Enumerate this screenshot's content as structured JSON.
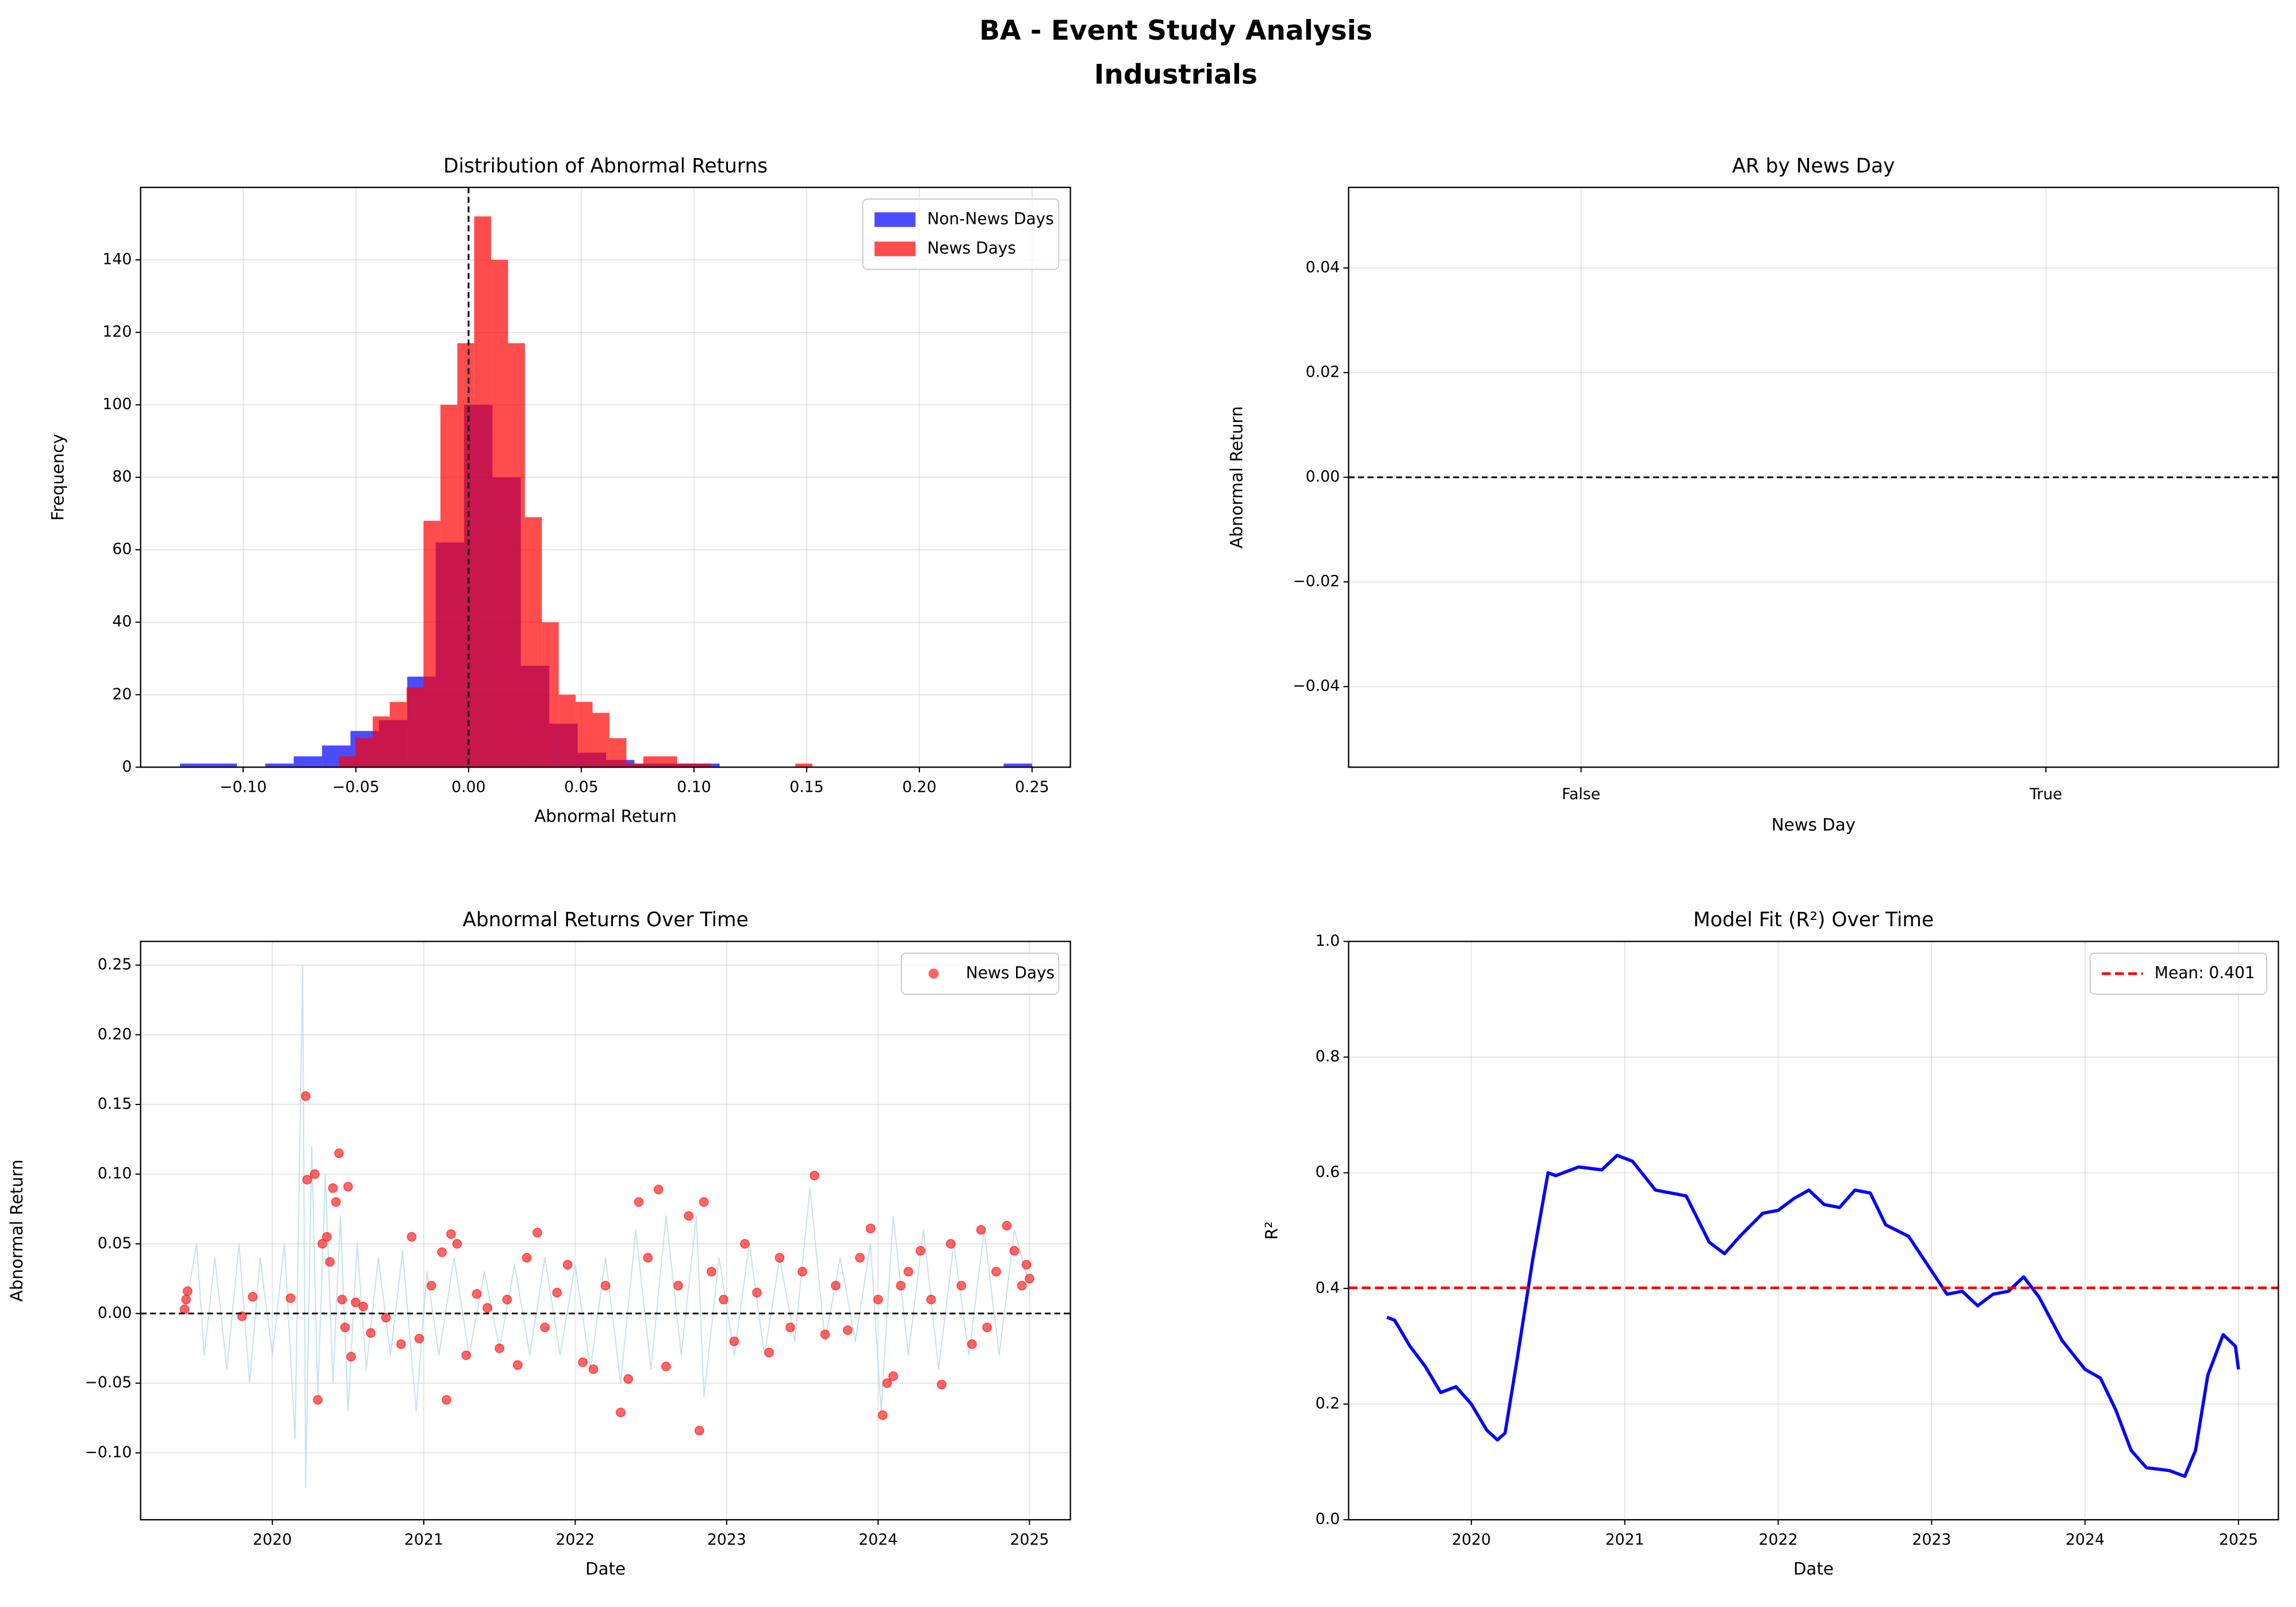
{
  "title": "BA - Event Study Analysis",
  "subtitle": "Industrials",
  "chart_data": [
    {
      "type": "histogram",
      "title": "Distribution of Abnormal Returns",
      "xlabel": "Abnormal Return",
      "ylabel": "Frequency",
      "xlim": [
        -0.1455,
        0.267
      ],
      "ylim": [
        0,
        160
      ],
      "xticks": [
        {
          "value": -0.1,
          "label": "−0.10"
        },
        {
          "value": -0.05,
          "label": "−0.05"
        },
        {
          "value": 0,
          "label": "0.00"
        },
        0.05,
        {
          "value": 0.1,
          "label": "0.10"
        },
        0.15,
        {
          "value": 0.2,
          "label": "0.20"
        },
        0.25
      ],
      "yticks": [
        0,
        20,
        40,
        60,
        80,
        100,
        120,
        140
      ],
      "grid": true,
      "legend": "upper right",
      "alpha": 0.7,
      "vline": {
        "value": 0,
        "color": "#000000"
      },
      "series": [
        {
          "name": "Non-News Days",
          "color": "#0000ff",
          "bins": [
            -0.128,
            -0.1154,
            -0.1028,
            -0.0902,
            -0.0776,
            -0.065,
            -0.0524,
            -0.0398,
            -0.0272,
            -0.0146,
            -0.002,
            0.0106,
            0.0232,
            0.0358,
            0.0484,
            0.061,
            0.0736,
            0.0862,
            0.0988,
            0.1114,
            0.124,
            0.1366,
            0.1492,
            0.1618,
            0.1744,
            0.187,
            0.1996,
            0.2122,
            0.2248,
            0.2374,
            0.25
          ],
          "counts": [
            1,
            1,
            0,
            1,
            3,
            6,
            10,
            13,
            25,
            62,
            100,
            80,
            28,
            12,
            4,
            2,
            1,
            1,
            1,
            0,
            0,
            0,
            0,
            0,
            0,
            0,
            0,
            0,
            0,
            1
          ]
        },
        {
          "name": "News Days",
          "color": "#ff0000",
          "bins": [
            -0.0575,
            -0.05,
            -0.0425,
            -0.035,
            -0.0275,
            -0.02,
            -0.0125,
            -0.005,
            0.0025,
            0.01,
            0.0175,
            0.025,
            0.0325,
            0.04,
            0.0475,
            0.055,
            0.0625,
            0.07,
            0.0775,
            0.085,
            0.0925,
            0.1,
            0.1075,
            0.115,
            0.1225,
            0.13,
            0.1375,
            0.145,
            0.1525
          ],
          "counts": [
            3,
            8,
            14,
            18,
            22,
            68,
            100,
            117,
            152,
            140,
            117,
            69,
            40,
            20,
            18,
            15,
            8,
            1,
            3,
            3,
            1,
            1,
            0,
            0,
            0,
            0,
            0,
            1
          ]
        }
      ]
    },
    {
      "type": "bar",
      "title": "AR by News Day",
      "xlabel": "News Day",
      "ylabel": "Abnormal Return",
      "categories": [
        "False",
        "True"
      ],
      "ylim": [
        -0.0554,
        0.0554
      ],
      "yticks": [
        {
          "value": -0.04,
          "label": "−0.04"
        },
        {
          "value": -0.02,
          "label": "−0.02"
        },
        {
          "value": 0,
          "label": "0.00"
        },
        0.02,
        0.04
      ],
      "grid": true,
      "hline": {
        "value": 0,
        "color": "#000000"
      }
    },
    {
      "type": "scatter",
      "title": "Abnormal Returns Over Time",
      "xlabel": "Date",
      "ylabel": "Abnormal Return",
      "xlim": [
        2019.13,
        2025.27
      ],
      "ylim": [
        -0.148,
        0.267
      ],
      "xticks": [
        2020,
        2021,
        2022,
        2023,
        2024,
        2025
      ],
      "yticks": [
        {
          "value": -0.1,
          "label": "−0.10"
        },
        {
          "value": -0.05,
          "label": "−0.05"
        },
        {
          "value": 0,
          "label": "0.00"
        },
        0.05,
        {
          "value": 0.1,
          "label": "0.10"
        },
        0.15,
        {
          "value": 0.2,
          "label": "0.20"
        },
        0.25
      ],
      "grid": true,
      "legend": "upper right",
      "hline": {
        "value": 0,
        "color": "#000000"
      },
      "series": [
        {
          "type": "line",
          "color": "#add8e6",
          "x": [
            2019.42,
            2019.5,
            2019.55,
            2019.62,
            2019.7,
            2019.78,
            2019.85,
            2019.92,
            2020.0,
            2020.08,
            2020.15,
            2020.2,
            2020.22,
            2020.26,
            2020.3,
            2020.35,
            2020.4,
            2020.45,
            2020.5,
            2020.56,
            2020.62,
            2020.7,
            2020.78,
            2020.86,
            2020.95,
            2021.02,
            2021.1,
            2021.2,
            2021.3,
            2021.4,
            2021.5,
            2021.6,
            2021.7,
            2021.8,
            2021.9,
            2022.0,
            2022.1,
            2022.2,
            2022.3,
            2022.4,
            2022.5,
            2022.6,
            2022.7,
            2022.8,
            2022.85,
            2022.95,
            2023.05,
            2023.15,
            2023.25,
            2023.35,
            2023.45,
            2023.55,
            2023.65,
            2023.75,
            2023.85,
            2023.95,
            2024.02,
            2024.1,
            2024.2,
            2024.3,
            2024.4,
            2024.5,
            2024.6,
            2024.7,
            2024.8,
            2024.9,
            2025.0
          ],
          "values": [
            0.0,
            0.05,
            -0.03,
            0.04,
            -0.04,
            0.05,
            -0.05,
            0.04,
            -0.03,
            0.05,
            -0.09,
            0.25,
            -0.125,
            0.12,
            -0.06,
            0.1,
            -0.05,
            0.07,
            -0.07,
            0.05,
            -0.04,
            0.04,
            -0.03,
            0.045,
            -0.07,
            0.03,
            -0.03,
            0.04,
            -0.03,
            0.03,
            -0.025,
            0.035,
            -0.03,
            0.04,
            -0.03,
            0.035,
            -0.04,
            0.04,
            -0.05,
            0.06,
            -0.04,
            0.07,
            -0.03,
            0.07,
            -0.06,
            0.04,
            -0.03,
            0.05,
            -0.03,
            0.04,
            -0.02,
            0.09,
            -0.02,
            0.04,
            -0.02,
            0.05,
            -0.07,
            0.07,
            -0.03,
            0.06,
            -0.04,
            0.05,
            -0.03,
            0.06,
            -0.03,
            0.06,
            0.02
          ]
        },
        {
          "name": "News Days",
          "type": "scatter",
          "color": "#ff0000",
          "x": [
            2019.42,
            2019.43,
            2019.44,
            2019.8,
            2019.87,
            2020.12,
            2020.22,
            2020.23,
            2020.28,
            2020.3,
            2020.33,
            2020.36,
            2020.38,
            2020.4,
            2020.42,
            2020.44,
            2020.46,
            2020.48,
            2020.5,
            2020.52,
            2020.55,
            2020.6,
            2020.65,
            2020.75,
            2020.85,
            2020.92,
            2020.97,
            2021.05,
            2021.12,
            2021.15,
            2021.18,
            2021.22,
            2021.28,
            2021.35,
            2021.42,
            2021.5,
            2021.55,
            2021.62,
            2021.68,
            2021.75,
            2021.8,
            2021.88,
            2021.95,
            2022.05,
            2022.12,
            2022.2,
            2022.3,
            2022.35,
            2022.42,
            2022.48,
            2022.55,
            2022.6,
            2022.68,
            2022.75,
            2022.82,
            2022.85,
            2022.9,
            2022.98,
            2023.05,
            2023.12,
            2023.2,
            2023.28,
            2023.35,
            2023.42,
            2023.5,
            2023.58,
            2023.65,
            2023.72,
            2023.8,
            2023.88,
            2023.95,
            2024.0,
            2024.03,
            2024.06,
            2024.1,
            2024.15,
            2024.2,
            2024.28,
            2024.35,
            2024.42,
            2024.48,
            2024.55,
            2024.62,
            2024.68,
            2024.72,
            2024.78,
            2024.85,
            2024.9,
            2024.95,
            2024.98,
            2025.0
          ],
          "values": [
            0.003,
            0.01,
            0.016,
            -0.002,
            0.012,
            0.011,
            0.156,
            0.096,
            0.1,
            -0.062,
            0.05,
            0.055,
            0.037,
            0.09,
            0.08,
            0.115,
            0.01,
            -0.01,
            0.091,
            -0.031,
            0.008,
            0.005,
            -0.014,
            -0.003,
            -0.022,
            0.055,
            -0.018,
            0.02,
            0.044,
            -0.062,
            0.057,
            0.05,
            -0.03,
            0.014,
            0.004,
            -0.025,
            0.01,
            -0.037,
            0.04,
            0.058,
            -0.01,
            0.015,
            0.035,
            -0.035,
            -0.04,
            0.02,
            -0.071,
            -0.047,
            0.08,
            0.04,
            0.089,
            -0.038,
            0.02,
            0.07,
            -0.084,
            0.08,
            0.03,
            0.01,
            -0.02,
            0.05,
            0.015,
            -0.028,
            0.04,
            -0.01,
            0.03,
            0.099,
            -0.015,
            0.02,
            -0.012,
            0.04,
            0.061,
            0.01,
            -0.073,
            -0.05,
            -0.045,
            0.02,
            0.03,
            0.045,
            0.01,
            -0.051,
            0.05,
            0.02,
            -0.022,
            0.06,
            -0.01,
            0.03,
            0.063,
            0.045,
            0.02,
            0.035,
            0.025
          ]
        }
      ]
    },
    {
      "type": "line",
      "title": "Model Fit (R²) Over Time",
      "xlabel": "Date",
      "ylabel": "R²",
      "xlim": [
        2019.2,
        2025.26
      ],
      "ylim": [
        0,
        1
      ],
      "xticks": [
        2020,
        2021,
        2022,
        2023,
        2024,
        2025
      ],
      "yticks": [
        {
          "value": 0,
          "label": "0.0"
        },
        0.2,
        0.4,
        0.6,
        0.8,
        {
          "value": 1,
          "label": "1.0"
        }
      ],
      "grid": true,
      "legend": "upper right",
      "hline": {
        "name": "Mean: 0.401",
        "value": 0.401,
        "color": "#ff0000"
      },
      "series": [
        {
          "color": "#0000ff",
          "x": [
            2019.45,
            2019.5,
            2019.6,
            2019.7,
            2019.8,
            2019.9,
            2020.0,
            2020.1,
            2020.17,
            2020.22,
            2020.3,
            2020.4,
            2020.5,
            2020.55,
            2020.7,
            2020.85,
            2020.95,
            2021.05,
            2021.2,
            2021.4,
            2021.55,
            2021.65,
            2021.75,
            2021.9,
            2022.0,
            2022.1,
            2022.2,
            2022.3,
            2022.4,
            2022.5,
            2022.6,
            2022.7,
            2022.85,
            2023.0,
            2023.1,
            2023.2,
            2023.3,
            2023.4,
            2023.5,
            2023.6,
            2023.7,
            2023.85,
            2024.0,
            2024.1,
            2024.2,
            2024.3,
            2024.4,
            2024.55,
            2024.65,
            2024.72,
            2024.8,
            2024.9,
            2024.98,
            2025.0
          ],
          "values": [
            0.35,
            0.345,
            0.3,
            0.265,
            0.22,
            0.23,
            0.2,
            0.155,
            0.138,
            0.15,
            0.28,
            0.45,
            0.6,
            0.595,
            0.61,
            0.605,
            0.63,
            0.62,
            0.57,
            0.56,
            0.48,
            0.46,
            0.49,
            0.53,
            0.535,
            0.555,
            0.57,
            0.545,
            0.54,
            0.57,
            0.565,
            0.51,
            0.49,
            0.43,
            0.39,
            0.395,
            0.37,
            0.39,
            0.395,
            0.42,
            0.385,
            0.31,
            0.26,
            0.245,
            0.19,
            0.12,
            0.09,
            0.085,
            0.075,
            0.12,
            0.25,
            0.32,
            0.3,
            0.26
          ]
        }
      ]
    }
  ]
}
